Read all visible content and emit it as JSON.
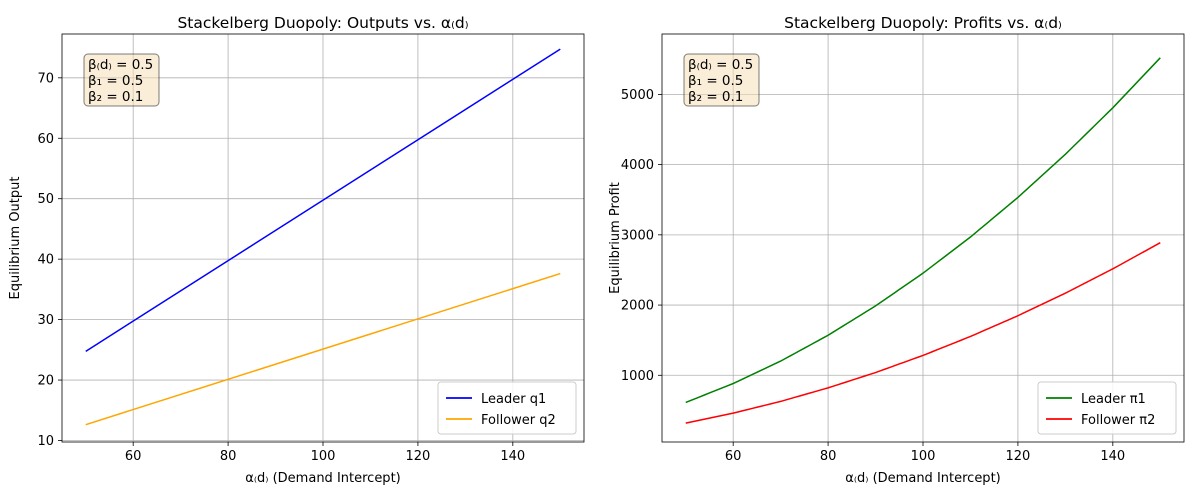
{
  "params_text": [
    "β₍d₎ = 0.5",
    "β₁ = 0.5",
    "β₂ = 0.1"
  ],
  "chart_data": [
    {
      "type": "line",
      "title": "Stackelberg Duopoly: Outputs vs. α₍d₎",
      "xlabel": "α₍d₎ (Demand Intercept)",
      "ylabel": "Equilibrium Output",
      "xlim": [
        45,
        155
      ],
      "ylim": [
        9.75,
        77.25
      ],
      "xticks": [
        60,
        80,
        100,
        120,
        140
      ],
      "yticks": [
        10,
        20,
        30,
        40,
        50,
        60,
        70
      ],
      "grid": true,
      "legend_position": "lower-right",
      "x": [
        50,
        150
      ],
      "series": [
        {
          "name": "Leader q1",
          "color": "#0000ff",
          "values": [
            24.75,
            74.75
          ]
        },
        {
          "name": "Follower q2",
          "color": "#ffa500",
          "values": [
            12.62,
            37.62
          ]
        }
      ]
    },
    {
      "type": "line",
      "title": "Stackelberg Duopoly: Profits vs. α₍d₎",
      "xlabel": "α₍d₎ (Demand Intercept)",
      "ylabel": "Equilibrium Profit",
      "xlim": [
        45,
        155
      ],
      "ylim": [
        50,
        5860
      ],
      "xticks": [
        60,
        80,
        100,
        120,
        140
      ],
      "yticks": [
        1000,
        2000,
        3000,
        4000,
        5000
      ],
      "grid": true,
      "legend_position": "lower-right",
      "x": [
        50,
        60,
        70,
        80,
        90,
        100,
        110,
        120,
        130,
        140,
        150
      ],
      "series": [
        {
          "name": "Leader π1",
          "color": "#008000",
          "values": [
            613,
            883,
            1202,
            1570,
            1988,
            2454,
            2969,
            3533,
            4147,
            4809,
            5521
          ]
        },
        {
          "name": "Follower π2",
          "color": "#ff0000",
          "values": [
            319,
            461,
            628,
            821,
            1039,
            1283,
            1553,
            1848,
            2169,
            2516,
            2888
          ]
        }
      ]
    }
  ]
}
